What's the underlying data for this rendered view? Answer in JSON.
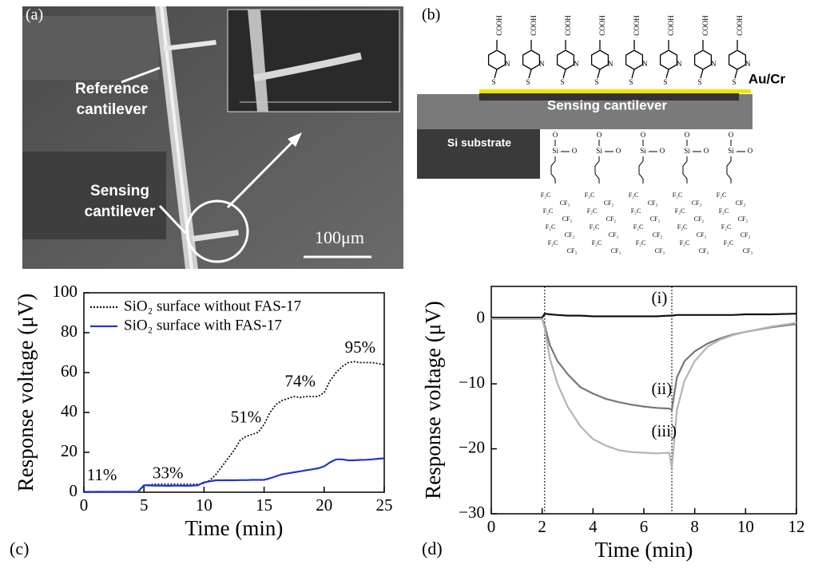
{
  "panels": {
    "a": {
      "label": "(a)",
      "reference_label": [
        "Reference",
        "cantilever"
      ],
      "sensing_label": [
        "Sensing",
        "cantilever"
      ],
      "scale_bar": "100μm"
    },
    "b": {
      "label": "(b)",
      "metal": "Au/Cr",
      "cantilever": "Sensing cantilever",
      "substrate": "Si substrate",
      "chem": {
        "cooh": "COOH",
        "n": "N",
        "s": "S",
        "o": "O",
        "si": "Si",
        "f2c": "F₂C",
        "cf2": "CF₂",
        "cf3": "CF₃"
      }
    },
    "c": {
      "label": "(c)"
    },
    "d": {
      "label": "(d)"
    }
  },
  "chart_data": [
    {
      "type": "line",
      "x_label": "Time (min)",
      "y_label": "Response voltage (μV)",
      "legend": true,
      "annotations": [
        "11%",
        "33%",
        "51%",
        "74%",
        "95%"
      ],
      "xlim": [
        0,
        25
      ],
      "xticks": [
        0,
        5,
        10,
        15,
        20,
        25
      ],
      "ylim": [
        0,
        100
      ],
      "yticks": [
        0,
        20,
        40,
        60,
        80,
        100
      ],
      "x": [
        0,
        0.5,
        1,
        1.5,
        2,
        2.5,
        3,
        3.5,
        4,
        4.5,
        5,
        5.5,
        6,
        6.5,
        7,
        7.5,
        8,
        8.5,
        9,
        9.5,
        10,
        10.5,
        11,
        11.5,
        12,
        12.5,
        13,
        13.5,
        14,
        14.5,
        15,
        15.5,
        16,
        16.5,
        17,
        17.5,
        18,
        18.5,
        19,
        19.5,
        20,
        20.5,
        21,
        21.5,
        22,
        22.5,
        23,
        23.5,
        24,
        24.5,
        25
      ],
      "series": [
        {
          "name": "SiO₂ surface without FAS-17",
          "color": "#111111",
          "style": "dotted",
          "values": [
            0.2,
            0.2,
            0.3,
            0.3,
            0.3,
            0.3,
            0.3,
            0.3,
            0.3,
            0.3,
            3.5,
            3.8,
            4,
            4,
            4,
            4,
            4,
            4,
            4,
            4,
            4.5,
            6,
            9,
            13,
            17,
            21,
            26,
            28,
            29,
            30,
            34,
            40,
            44,
            46,
            47,
            48,
            47.5,
            48,
            48,
            48,
            50,
            56,
            60,
            63,
            65,
            65.5,
            65,
            65,
            65,
            64.5,
            64
          ]
        },
        {
          "name": "SiO₂ surface with FAS-17",
          "color": "#2336c8",
          "style": "solid",
          "values": [
            0.2,
            0.2,
            0.2,
            0.2,
            0.2,
            0.2,
            0.2,
            0.2,
            0.2,
            0.2,
            3.5,
            3.4,
            3.3,
            3.3,
            3.2,
            3.3,
            3.3,
            3.2,
            3.3,
            3.5,
            5,
            5.5,
            6,
            6,
            6,
            6,
            6.1,
            6.1,
            6.2,
            6.2,
            6.2,
            7,
            8,
            9,
            9.5,
            10,
            10.5,
            11,
            11.5,
            12,
            13,
            15,
            16.5,
            16.5,
            16,
            16,
            16.2,
            16.3,
            16.5,
            16.8,
            17
          ]
        }
      ]
    },
    {
      "type": "line",
      "x_label": "Time (min)",
      "y_label": "Response voltage (μV)",
      "legend": false,
      "vlines": [
        2.1,
        7.1
      ],
      "xlim": [
        0,
        12
      ],
      "xticks": [
        0,
        2,
        4,
        6,
        8,
        10,
        12
      ],
      "ylim": [
        -30,
        5
      ],
      "yticks": [
        {
          "value": -30,
          "label": "−30"
        },
        {
          "value": -20,
          "label": "−20"
        },
        {
          "value": -10,
          "label": "−10"
        },
        0
      ],
      "x": [
        0,
        1,
        2,
        2.1,
        2.3,
        2.6,
        3,
        3.5,
        4,
        4.5,
        5,
        5.5,
        6,
        6.5,
        7,
        7.1,
        7.3,
        7.6,
        8,
        8.5,
        9,
        9.5,
        10,
        11,
        12
      ],
      "series": [
        {
          "name": "(i)",
          "color": "#111111",
          "style": "solid",
          "values": [
            0.2,
            0.2,
            0.2,
            0.8,
            0.7,
            0.6,
            0.5,
            0.5,
            0.4,
            0.4,
            0.4,
            0.4,
            0.4,
            0.4,
            0.5,
            0.5,
            0.6,
            0.6,
            0.6,
            0.6,
            0.6,
            0.6,
            0.7,
            0.7,
            0.8
          ]
        },
        {
          "name": "(ii)",
          "color": "#777777",
          "style": "solid",
          "values": [
            0,
            0,
            0,
            -1,
            -4,
            -6.5,
            -8.5,
            -10.5,
            -11.5,
            -12.3,
            -12.8,
            -13.2,
            -13.5,
            -13.7,
            -13.8,
            -14,
            -9,
            -6.5,
            -5,
            -3.8,
            -3,
            -2.4,
            -2,
            -1.3,
            -0.8
          ]
        },
        {
          "name": "(iii)",
          "color": "#b4b4b4",
          "style": "solid",
          "values": [
            0,
            0,
            0,
            -1.5,
            -6,
            -10,
            -13.5,
            -16.5,
            -18.5,
            -19.5,
            -20.2,
            -20.5,
            -20.6,
            -20.7,
            -20.6,
            -23,
            -14,
            -9.5,
            -6.5,
            -4.3,
            -3.2,
            -2.5,
            -2,
            -1.2,
            -0.6
          ]
        }
      ]
    }
  ]
}
